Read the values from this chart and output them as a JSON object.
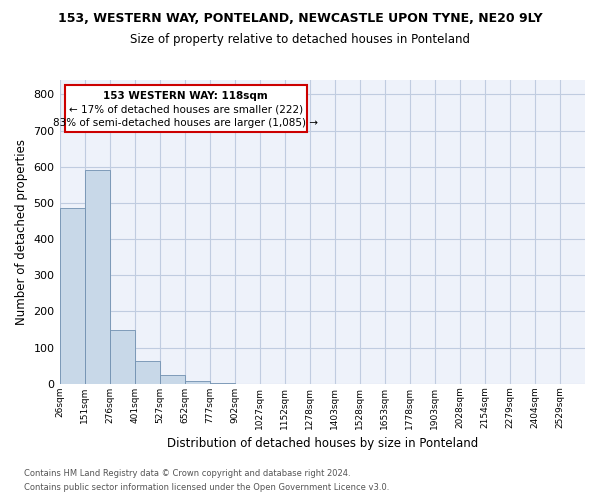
{
  "title1": "153, WESTERN WAY, PONTELAND, NEWCASTLE UPON TYNE, NE20 9LY",
  "title2": "Size of property relative to detached houses in Ponteland",
  "xlabel": "Distribution of detached houses by size in Ponteland",
  "ylabel": "Number of detached properties",
  "bar_color": "#c8d8e8",
  "bar_edge_color": "#7090b0",
  "annotation_box_color": "#cc0000",
  "categories": [
    "26sqm",
    "151sqm",
    "276sqm",
    "401sqm",
    "527sqm",
    "652sqm",
    "777sqm",
    "902sqm",
    "1027sqm",
    "1152sqm",
    "1278sqm",
    "1403sqm",
    "1528sqm",
    "1653sqm",
    "1778sqm",
    "1903sqm",
    "2028sqm",
    "2154sqm",
    "2279sqm",
    "2404sqm",
    "2529sqm"
  ],
  "values": [
    487,
    590,
    150,
    63,
    25,
    8,
    2,
    0,
    0,
    0,
    0,
    0,
    0,
    0,
    0,
    0,
    0,
    0,
    0,
    0,
    0
  ],
  "ylim": [
    0,
    840
  ],
  "yticks": [
    0,
    100,
    200,
    300,
    400,
    500,
    600,
    700,
    800
  ],
  "annotation_text1": "153 WESTERN WAY: 118sqm",
  "annotation_text2": "← 17% of detached houses are smaller (222)",
  "annotation_text3": "83% of semi-detached houses are larger (1,085) →",
  "footer1": "Contains HM Land Registry data © Crown copyright and database right 2024.",
  "footer2": "Contains public sector information licensed under the Open Government Licence v3.0.",
  "background_color": "#eef2fa",
  "grid_color": "#c0cce0"
}
